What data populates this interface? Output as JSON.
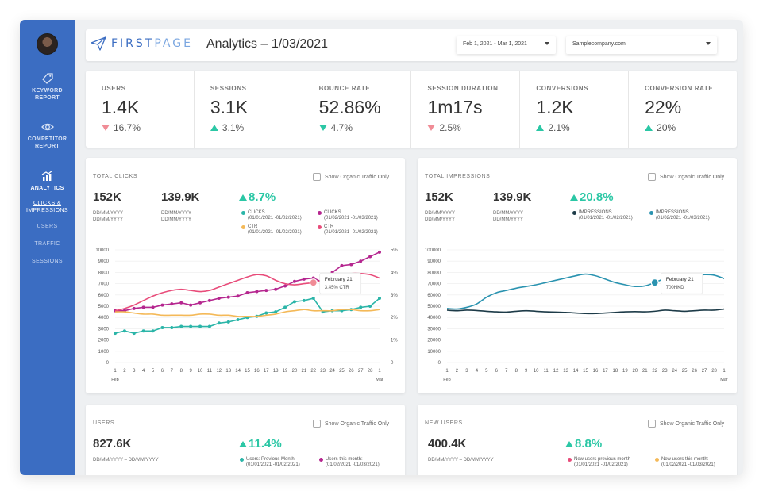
{
  "sidebar": {
    "items": [
      {
        "label_1": "KEYWORD",
        "label_2": "REPORT"
      },
      {
        "label_1": "COMPETITOR",
        "label_2": "REPORT"
      },
      {
        "label_1": "ANALYTICS"
      }
    ],
    "subitems": [
      {
        "label_1": "CLICKS &",
        "label_2": "IMPRESSIONS"
      },
      {
        "label": "USERS"
      },
      {
        "label": "TRAFFIC"
      },
      {
        "label": "SESSIONS"
      }
    ]
  },
  "header": {
    "logo_first": "FIRST",
    "logo_second": "PAGE",
    "title": "Analytics – 1/03/2021",
    "date_range": "Feb 1, 2021 - Mar 1, 2021",
    "site": "Samplecompany.com"
  },
  "kpis": [
    {
      "label": "USERS",
      "value": "1.4K",
      "change": "16.7%",
      "direction": "down"
    },
    {
      "label": "SESSIONS",
      "value": "3.1K",
      "change": "3.1%",
      "direction": "up"
    },
    {
      "label": "BOUNCE RATE",
      "value": "52.86%",
      "change": "4.7%",
      "direction": "down-good"
    },
    {
      "label": "SESSION DURATION",
      "value": "1m17s",
      "change": "2.5%",
      "direction": "down"
    },
    {
      "label": "CONVERSIONS",
      "value": "1.2K",
      "change": "2.1%",
      "direction": "up"
    },
    {
      "label": "CONVERSION RATE",
      "value": "22%",
      "change": "20%",
      "direction": "up"
    }
  ],
  "clicks": {
    "title": "TOTAL CLICKS",
    "toggle": "Show Organic Traffic Only",
    "value_1": "152K",
    "value_2": "139.9K",
    "change": "8.7%",
    "period_1a": "DD/MM/YYYY –",
    "period_1b": "DD/MM/YYYY",
    "period_2a": "DD/MM/YYYY –",
    "period_2b": "DD/MM/YYYY",
    "legend": [
      {
        "name": "CLICKS",
        "period": "(01/01/2021 -01/02/2021)",
        "color": "#2bb5a8"
      },
      {
        "name": "CLICKS",
        "period": "(01/02/2021 -01/03/2021)",
        "color": "#b5268f"
      },
      {
        "name": "CTR",
        "period": "(01/01/2021 -01/02/2021)",
        "color": "#f4b958"
      },
      {
        "name": "CTR",
        "period": "(01/01/2021 -01/02/2021)",
        "color": "#e84c7a"
      }
    ],
    "tooltip_title": "February 21",
    "tooltip_value": "3.45% CTR"
  },
  "impressions": {
    "title": "TOTAL IMPRESSIONS",
    "toggle": "Show Organic Traffic Only",
    "value_1": "152K",
    "value_2": "139.9K",
    "change": "20.8%",
    "period_1a": "DD/MM/YYYY –",
    "period_1b": "DD/MM/YYYY",
    "period_2a": "DD/MM/YYYY –",
    "period_2b": "DD/MM/YYYY",
    "legend": [
      {
        "name": "IMPRESSIONS",
        "period": "(01/01/2021 -01/02/2021)",
        "color": "#1d3b48"
      },
      {
        "name": "IMPRESSIONS",
        "period": "(01/02/2021 -01/03/2021)",
        "color": "#2a93b0"
      }
    ],
    "tooltip_title": "February 21",
    "tooltip_value": "700HKD"
  },
  "users": {
    "title": "USERS",
    "toggle": "Show Organic Traffic Only",
    "value": "827.6K",
    "period": "DD/MM/YYYY – DD/MM/YYYY",
    "change": "11.4%",
    "legend": [
      {
        "name": "Users: Previous Month",
        "period": "(01/01/2021 -01/02/2021)",
        "color": "#2bb5a8"
      },
      {
        "name": "Users this month:",
        "period": "(01/02/2021 -01/03/2021)",
        "color": "#b5268f"
      }
    ]
  },
  "new_users": {
    "title": "NEW USERS",
    "toggle": "Show Organic Traffic Only",
    "value": "400.4K",
    "period": "DD/MM/YYYY – DD/MM/YYYY",
    "change": "8.8%",
    "legend": [
      {
        "name": "New users previous month",
        "period": "(01/01/2021 -01/02/2021)",
        "color": "#e84c7a"
      },
      {
        "name": "New users this month:",
        "period": "(01/02/2021 -01/03/2021)",
        "color": "#f4b958"
      }
    ]
  },
  "chart_data": [
    {
      "type": "line",
      "x": [
        "1",
        "2",
        "3",
        "4",
        "5",
        "6",
        "7",
        "8",
        "9",
        "10",
        "11",
        "12",
        "13",
        "14",
        "15",
        "16",
        "17",
        "18",
        "19",
        "20",
        "21",
        "22",
        "23",
        "24",
        "25",
        "26",
        "27",
        "28",
        "1"
      ],
      "x_start_label": "Feb",
      "x_end_label": "Mar",
      "ylim": [
        0,
        10000
      ],
      "y_ticks": [
        0,
        1000,
        2000,
        3000,
        4000,
        5000,
        6000,
        7000,
        8000,
        9000,
        10000
      ],
      "y2lim": [
        0,
        5
      ],
      "y2_ticks": [
        "0",
        "1%",
        "2%",
        "3%",
        "4%",
        "5%"
      ],
      "series": [
        {
          "name": "CLICKS",
          "color": "#2bb5a8",
          "markers": true,
          "values": [
            2600,
            2800,
            2600,
            2800,
            2800,
            3100,
            3100,
            3200,
            3200,
            3200,
            3200,
            3500,
            3600,
            3800,
            4000,
            4100,
            4400,
            4500,
            4900,
            5400,
            5500,
            5700,
            4500,
            4600,
            4600,
            4700,
            4900,
            5000,
            5700
          ]
        },
        {
          "name": "CLICKS",
          "color": "#b5268f",
          "markers": true,
          "values": [
            4600,
            4600,
            4800,
            4900,
            4900,
            5100,
            5200,
            5300,
            5100,
            5300,
            5500,
            5700,
            5800,
            5900,
            6200,
            6300,
            6400,
            6500,
            6800,
            7200,
            7400,
            7500,
            7100,
            8000,
            8600,
            8700,
            9000,
            9400,
            9800
          ]
        },
        {
          "name": "CTR",
          "color": "#f4b958",
          "markers": false,
          "values": [
            4500,
            4500,
            4400,
            4300,
            4300,
            4200,
            4200,
            4200,
            4200,
            4300,
            4300,
            4200,
            4200,
            4100,
            4100,
            4100,
            4200,
            4300,
            4500,
            4600,
            4700,
            4600,
            4600,
            4600,
            4700,
            4700,
            4600,
            4600,
            4700
          ]
        },
        {
          "name": "CTR",
          "color": "#e84c7a",
          "markers": false,
          "values": [
            4600,
            4800,
            5100,
            5500,
            5900,
            6200,
            6400,
            6500,
            6400,
            6300,
            6400,
            6700,
            7000,
            7300,
            7600,
            7800,
            7700,
            7300,
            7000,
            6900,
            7000,
            7100,
            7300,
            7600,
            7700,
            7900,
            7900,
            7800,
            7500
          ]
        }
      ]
    },
    {
      "type": "line",
      "x": [
        "1",
        "2",
        "3",
        "4",
        "5",
        "6",
        "7",
        "8",
        "9",
        "10",
        "11",
        "12",
        "13",
        "14",
        "15",
        "16",
        "17",
        "18",
        "19",
        "20",
        "21",
        "22",
        "23",
        "24",
        "25",
        "26",
        "27",
        "28",
        "1"
      ],
      "x_start_label": "Feb",
      "x_end_label": "Mar",
      "ylim": [
        0,
        100000
      ],
      "y_ticks": [
        0,
        10000,
        20000,
        30000,
        40000,
        50000,
        60000,
        70000,
        80000,
        90000,
        100000
      ],
      "series": [
        {
          "name": "IMPRESSIONS",
          "color": "#1d3b48",
          "markers": false,
          "values": [
            46500,
            46000,
            46500,
            46200,
            45500,
            45000,
            44800,
            45500,
            46000,
            45500,
            45000,
            44800,
            44500,
            44000,
            43500,
            43500,
            44000,
            44500,
            45000,
            45200,
            45000,
            45500,
            46500,
            46000,
            45500,
            46000,
            46500,
            46500,
            47500
          ]
        },
        {
          "name": "IMPRESSIONS",
          "color": "#2a93b0",
          "markers": false,
          "values": [
            48000,
            47500,
            49000,
            52000,
            58000,
            62000,
            64000,
            66000,
            67500,
            69000,
            71000,
            73000,
            75000,
            77000,
            78500,
            77000,
            74000,
            71000,
            69000,
            67500,
            68000,
            71000,
            74500,
            76000,
            76500,
            77000,
            78000,
            77500,
            74500
          ]
        }
      ]
    }
  ]
}
